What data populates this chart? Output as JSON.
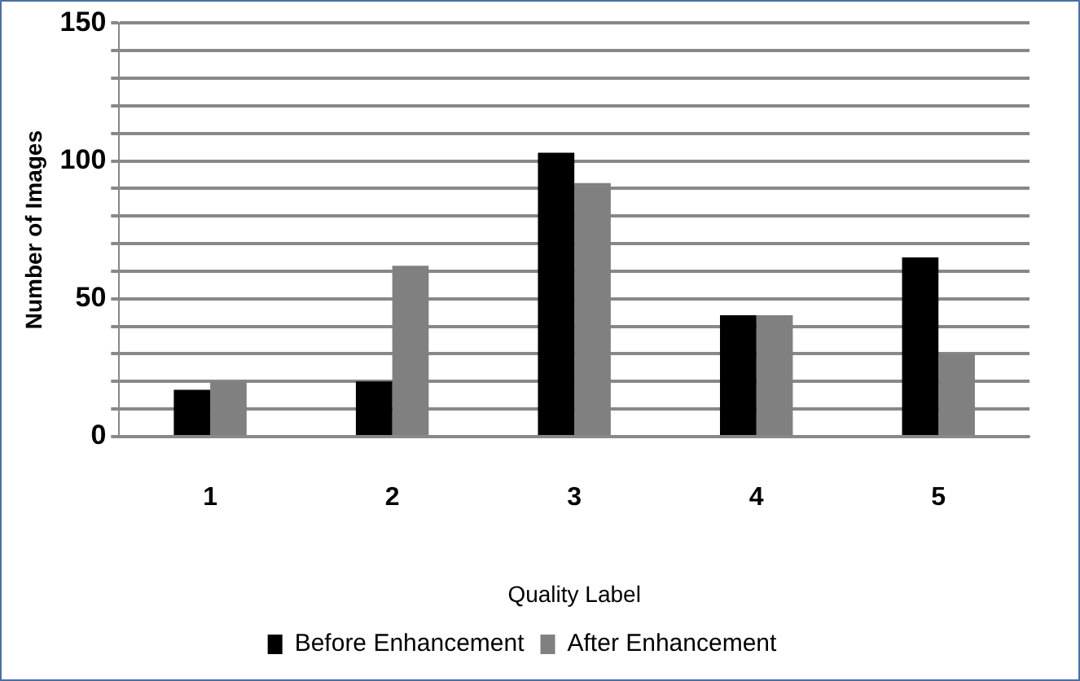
{
  "chart_data": {
    "type": "bar",
    "xlabel": "Quality Label",
    "ylabel": "Number of Images",
    "categories": [
      "1",
      "2",
      "3",
      "4",
      "5"
    ],
    "series": [
      {
        "name": "Before Enhancement",
        "color": "#000000",
        "values": [
          17,
          20,
          103,
          44,
          65
        ]
      },
      {
        "name": "After Enhancement",
        "color": "#808080",
        "values": [
          20,
          62,
          92,
          44,
          30
        ]
      }
    ],
    "ylim": [
      0,
      150
    ],
    "yticks": [
      0,
      {
        "value": 10,
        "label": null
      },
      {
        "value": 20,
        "label": null
      },
      {
        "value": 30,
        "label": null
      },
      {
        "value": 40,
        "label": null
      },
      50,
      {
        "value": 60,
        "label": null
      },
      {
        "value": 70,
        "label": null
      },
      {
        "value": 80,
        "label": null
      },
      {
        "value": 90,
        "label": null
      },
      100,
      {
        "value": 110,
        "label": null
      },
      {
        "value": 120,
        "label": null
      },
      {
        "value": 130,
        "label": null
      },
      {
        "value": 140,
        "label": null
      },
      150
    ],
    "grid": "y",
    "legend": "bottom"
  }
}
